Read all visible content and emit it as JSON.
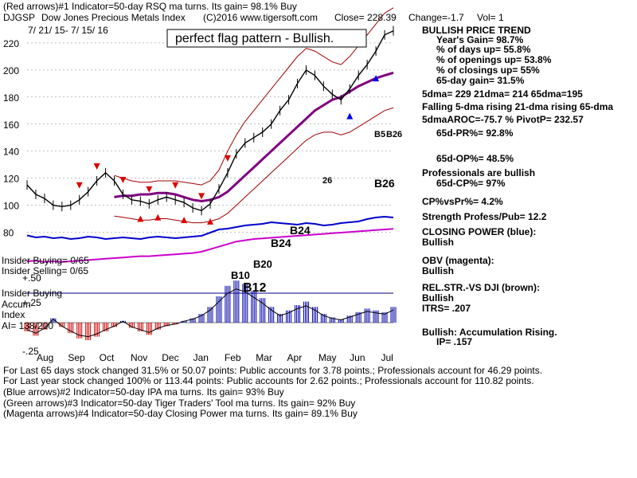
{
  "header": {
    "line1": "(Red arrows)#1 Indicator=50-day RSQ ma turns. Its gain= 98.1% Buy",
    "symbol": "DJGSP",
    "name": "Dow Jones Precious Metals Index",
    "copyright": "(C)2016 www.tigersoft.com",
    "close": "Close=  228.39",
    "change": "Change=-1.7",
    "vol": "Vol= 1",
    "date_range": "7/ 21/ 15- 7/ 15/ 16",
    "banner": "perfect flag pattern - Bullish."
  },
  "stats": {
    "trend_title": "BULLISH PRICE TREND",
    "lines": [
      "Year's Gain= 98.7%",
      "% of days up= 55.8%",
      "% of openings up= 53.8%",
      "% of closings up= 55%",
      "65-day gain= 31.5%",
      "5dma= 229 21dma= 214 65dma=195",
      "Falling 5-dma rising 21-dma rising 65-dma",
      "5dmaAROC=-75.7 %  PivotP= 232.57",
      "65d-PR%= 92.8%",
      "65d-OP%= 48.5%",
      "Professionals are bullish",
      "65d-CP%= 97%",
      "CP%vsPr%=  4.2%",
      "Strength Profess/Pub= 12.2",
      "CLOSING POWER (blue):",
      "Bullish",
      "OBV (magenta):",
      "Bullish",
      "REL.STR.-VS DJI (brown):",
      "Bullish",
      "ITRS= .207",
      "Bullish: Accumulation Rising.",
      "IP=  .157"
    ]
  },
  "left_labels": {
    "insider_buying": "Insider Buying= 0/65",
    "insider_selling": "Insider Selling= 0/65",
    "plus50": "+.50",
    "insider_buying2": "Insider Buying",
    "accum": "Accum",
    "plus25": "+.25",
    "index": "Index",
    "ai": "AI= 138/200",
    "minus25": "-.25"
  },
  "footer": [
    "For Last 65 days stock changed  31.5% or  50.07 points:  Public accounts for  3.78 points.;  Professionals account for  46.29 points.",
    "For Last year stock changed   100% or  113.44 points:  Public accounts for  2.62 points.;  Professionals account for  110.82 points.",
    "(Blue arrows)#2 Indicator=50-day IPA ma turns. Its gain= 93% Buy",
    "(Green arrows)#3 Indicator=50-day Tiger Traders' Tool ma turns. Its gain= 92% Buy",
    "(Magenta arrows)#4 Indicator=50-day Closing Power ma turns. Its gain= 89.1% Buy"
  ],
  "annotations": [
    "B12",
    "B10",
    "B20",
    "B24",
    "B24",
    "B26",
    "26",
    "B26",
    "B5"
  ],
  "chart_data": {
    "type": "line",
    "title": "Dow Jones Precious Metals Index",
    "x_labels": [
      "Aug",
      "Sep",
      "Oct",
      "Nov",
      "Dec",
      "Jan",
      "Feb",
      "Mar",
      "Apr",
      "May",
      "Jun",
      "Jul"
    ],
    "y_ticks": [
      80,
      100,
      120,
      140,
      160,
      180,
      200,
      220
    ],
    "ylim": [
      75,
      240
    ],
    "series": [
      {
        "name": "Price",
        "color": "#000000",
        "values": [
          115,
          108,
          105,
          100,
          99,
          100,
          104,
          110,
          118,
          124,
          118,
          108,
          104,
          103,
          101,
          104,
          106,
          104,
          102,
          98,
          96,
          101,
          112,
          124,
          138,
          146,
          150,
          154,
          160,
          170,
          178,
          190,
          200,
          196,
          188,
          182,
          178,
          186,
          196,
          204,
          214,
          226,
          229
        ]
      },
      {
        "name": "65-dma",
        "color": "#800080",
        "values": [
          null,
          null,
          null,
          null,
          null,
          null,
          null,
          null,
          null,
          null,
          106,
          107,
          107,
          108,
          108,
          109,
          109,
          108,
          106,
          104,
          103,
          104,
          106,
          110,
          116,
          122,
          128,
          134,
          140,
          146,
          152,
          158,
          164,
          170,
          174,
          178,
          180,
          184,
          188,
          191,
          194,
          196,
          198
        ]
      },
      {
        "name": "Upper band",
        "color": "#a00000",
        "values": [
          null,
          null,
          null,
          null,
          null,
          null,
          null,
          null,
          null,
          null,
          122,
          120,
          118,
          117,
          117,
          118,
          118,
          118,
          117,
          116,
          115,
          118,
          126,
          140,
          152,
          162,
          170,
          178,
          186,
          194,
          202,
          210,
          216,
          214,
          210,
          206,
          204,
          210,
          218,
          226,
          234,
          242,
          246
        ]
      },
      {
        "name": "Lower band",
        "color": "#a00000",
        "values": [
          null,
          null,
          null,
          null,
          null,
          null,
          null,
          null,
          null,
          null,
          92,
          91,
          90,
          89,
          89,
          90,
          90,
          89,
          88,
          87,
          87,
          88,
          90,
          94,
          100,
          106,
          112,
          118,
          124,
          130,
          136,
          142,
          148,
          152,
          154,
          154,
          152,
          154,
          158,
          162,
          166,
          170,
          172
        ]
      }
    ],
    "closing_power_values": [
      0.45,
      0.4,
      0.42,
      0.38,
      0.4,
      0.36,
      0.38,
      0.42,
      0.4,
      0.36,
      0.38,
      0.4,
      0.38,
      0.36,
      0.4,
      0.42,
      0.4,
      0.38,
      0.4,
      0.42,
      0.44,
      0.52,
      0.6,
      0.62,
      0.66,
      0.7,
      0.72,
      0.74,
      0.78,
      0.76,
      0.74,
      0.72,
      0.76,
      0.74,
      0.7,
      0.72,
      0.76,
      0.78,
      0.8,
      0.86,
      0.9,
      0.92,
      0.9
    ],
    "obv_values": [
      0.25,
      0.26,
      0.24,
      0.25,
      0.24,
      0.25,
      0.26,
      0.27,
      0.28,
      0.29,
      0.3,
      0.31,
      0.32,
      0.33,
      0.33,
      0.34,
      0.35,
      0.36,
      0.37,
      0.38,
      0.4,
      0.44,
      0.48,
      0.52,
      0.56,
      0.58,
      0.6,
      0.61,
      0.62,
      0.63,
      0.64,
      0.65,
      0.66,
      0.67,
      0.68,
      0.69,
      0.7,
      0.71,
      0.72,
      0.73,
      0.74,
      0.75,
      0.76
    ],
    "accumulation_values": [
      -0.1,
      -0.15,
      -0.08,
      0.05,
      -0.05,
      -0.12,
      -0.18,
      -0.2,
      -0.16,
      -0.1,
      -0.05,
      0.02,
      -0.06,
      -0.1,
      -0.14,
      -0.08,
      -0.04,
      -0.02,
      0.02,
      0.05,
      0.1,
      0.18,
      0.3,
      0.42,
      0.48,
      0.44,
      0.36,
      0.28,
      0.18,
      0.1,
      0.14,
      0.2,
      0.24,
      0.18,
      0.1,
      0.06,
      0.04,
      0.08,
      0.12,
      0.16,
      0.14,
      0.12,
      0.18
    ]
  },
  "colors": {
    "price": "#000000",
    "ma65": "#800080",
    "bands": "#a00000",
    "closing_power": "#0000cc",
    "obv": "#cc00cc",
    "accum_pos": "#0000aa",
    "accum_neg": "#cc0000",
    "red_arrow": "#dd0000",
    "blue_arrow": "#0000ee",
    "grid": "#808080"
  }
}
